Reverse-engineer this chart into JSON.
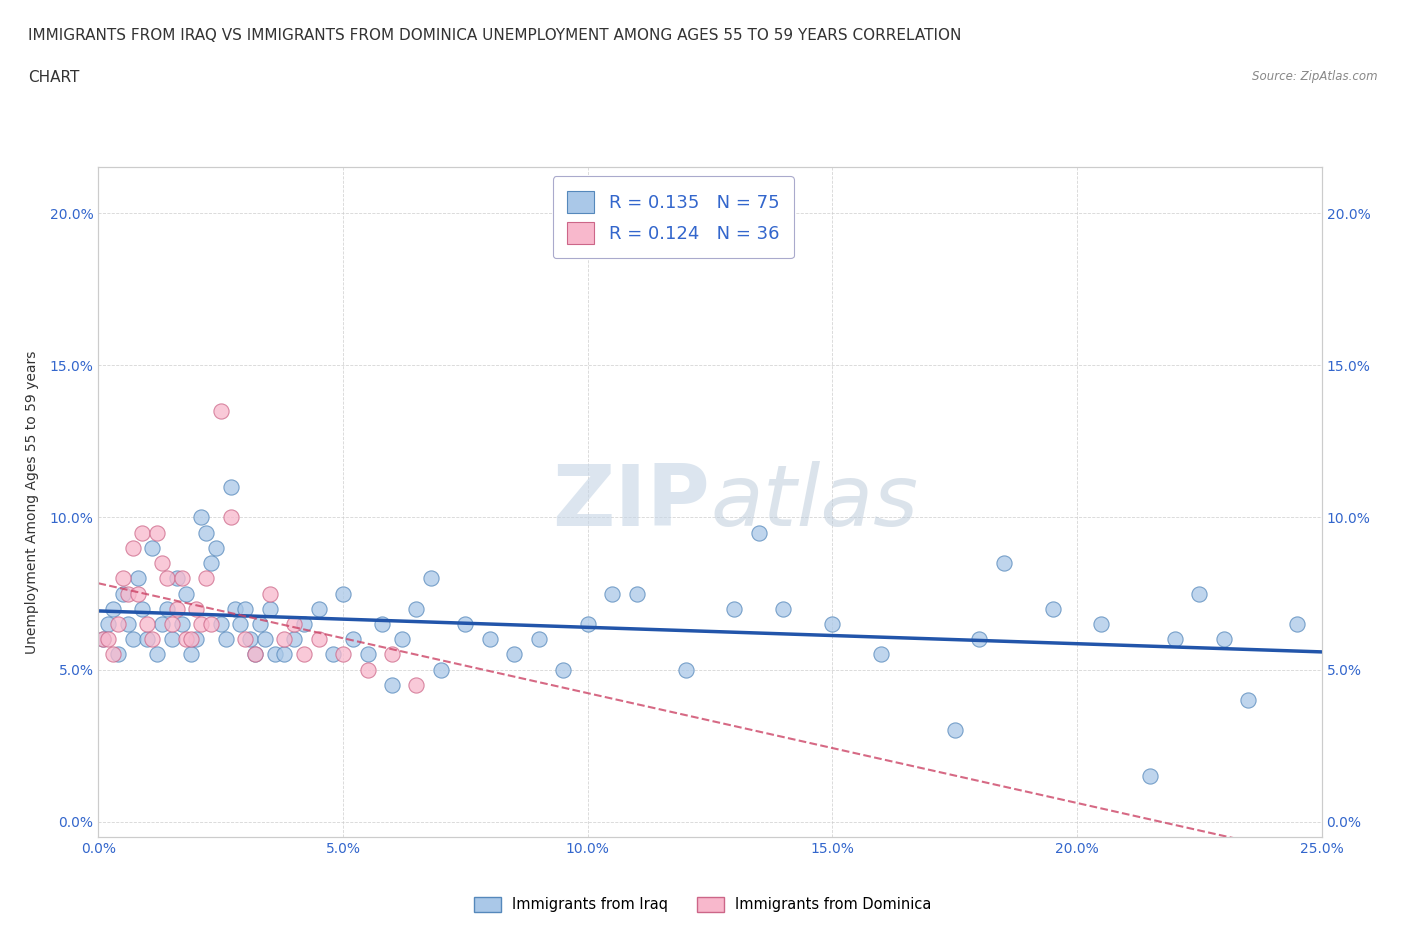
{
  "title_line1": "IMMIGRANTS FROM IRAQ VS IMMIGRANTS FROM DOMINICA UNEMPLOYMENT AMONG AGES 55 TO 59 YEARS CORRELATION",
  "title_line2": "CHART",
  "source_text": "Source: ZipAtlas.com",
  "ylabel": "Unemployment Among Ages 55 to 59 years",
  "xlim": [
    0.0,
    0.25
  ],
  "ylim": [
    -0.005,
    0.215
  ],
  "xticks": [
    0.0,
    0.05,
    0.1,
    0.15,
    0.2,
    0.25
  ],
  "xtick_labels": [
    "0.0%",
    "5.0%",
    "10.0%",
    "15.0%",
    "20.0%",
    "25.0%"
  ],
  "yticks": [
    0.0,
    0.05,
    0.1,
    0.15,
    0.2
  ],
  "ytick_labels": [
    "0.0%",
    "5.0%",
    "10.0%",
    "15.0%",
    "20.0%"
  ],
  "iraq_color": "#aac8e8",
  "iraq_edge_color": "#5588bb",
  "dominica_color": "#f8b8cc",
  "dominica_edge_color": "#cc6688",
  "iraq_R": 0.135,
  "iraq_N": 75,
  "dominica_R": 0.124,
  "dominica_N": 36,
  "iraq_trend_color": "#2255aa",
  "dominica_trend_color": "#cc4466",
  "watermark_color": "#d0dff0",
  "title_fontsize": 11,
  "axis_label_fontsize": 10,
  "tick_fontsize": 10,
  "legend_fontsize": 13,
  "iraq_x": [
    0.001,
    0.002,
    0.003,
    0.004,
    0.005,
    0.006,
    0.007,
    0.008,
    0.009,
    0.01,
    0.011,
    0.012,
    0.013,
    0.014,
    0.015,
    0.016,
    0.017,
    0.018,
    0.019,
    0.02,
    0.021,
    0.022,
    0.023,
    0.024,
    0.025,
    0.026,
    0.027,
    0.028,
    0.029,
    0.03,
    0.031,
    0.032,
    0.033,
    0.034,
    0.035,
    0.036,
    0.038,
    0.04,
    0.042,
    0.045,
    0.048,
    0.05,
    0.052,
    0.055,
    0.058,
    0.06,
    0.062,
    0.065,
    0.068,
    0.07,
    0.075,
    0.08,
    0.085,
    0.09,
    0.095,
    0.1,
    0.105,
    0.11,
    0.12,
    0.13,
    0.135,
    0.14,
    0.15,
    0.16,
    0.175,
    0.18,
    0.185,
    0.195,
    0.205,
    0.215,
    0.22,
    0.225,
    0.23,
    0.235,
    0.245
  ],
  "iraq_y": [
    0.06,
    0.065,
    0.07,
    0.055,
    0.075,
    0.065,
    0.06,
    0.08,
    0.07,
    0.06,
    0.09,
    0.055,
    0.065,
    0.07,
    0.06,
    0.08,
    0.065,
    0.075,
    0.055,
    0.06,
    0.1,
    0.095,
    0.085,
    0.09,
    0.065,
    0.06,
    0.11,
    0.07,
    0.065,
    0.07,
    0.06,
    0.055,
    0.065,
    0.06,
    0.07,
    0.055,
    0.055,
    0.06,
    0.065,
    0.07,
    0.055,
    0.075,
    0.06,
    0.055,
    0.065,
    0.045,
    0.06,
    0.07,
    0.08,
    0.05,
    0.065,
    0.06,
    0.055,
    0.06,
    0.05,
    0.065,
    0.075,
    0.075,
    0.05,
    0.07,
    0.095,
    0.07,
    0.065,
    0.055,
    0.03,
    0.06,
    0.085,
    0.07,
    0.065,
    0.015,
    0.06,
    0.075,
    0.06,
    0.04,
    0.065
  ],
  "dominica_x": [
    0.001,
    0.002,
    0.003,
    0.004,
    0.005,
    0.006,
    0.007,
    0.008,
    0.009,
    0.01,
    0.011,
    0.012,
    0.013,
    0.014,
    0.015,
    0.016,
    0.017,
    0.018,
    0.019,
    0.02,
    0.021,
    0.022,
    0.023,
    0.025,
    0.027,
    0.03,
    0.032,
    0.035,
    0.038,
    0.04,
    0.042,
    0.045,
    0.05,
    0.055,
    0.06,
    0.065
  ],
  "dominica_y": [
    0.06,
    0.06,
    0.055,
    0.065,
    0.08,
    0.075,
    0.09,
    0.075,
    0.095,
    0.065,
    0.06,
    0.095,
    0.085,
    0.08,
    0.065,
    0.07,
    0.08,
    0.06,
    0.06,
    0.07,
    0.065,
    0.08,
    0.065,
    0.135,
    0.1,
    0.06,
    0.055,
    0.075,
    0.06,
    0.065,
    0.055,
    0.06,
    0.055,
    0.05,
    0.055,
    0.045
  ]
}
